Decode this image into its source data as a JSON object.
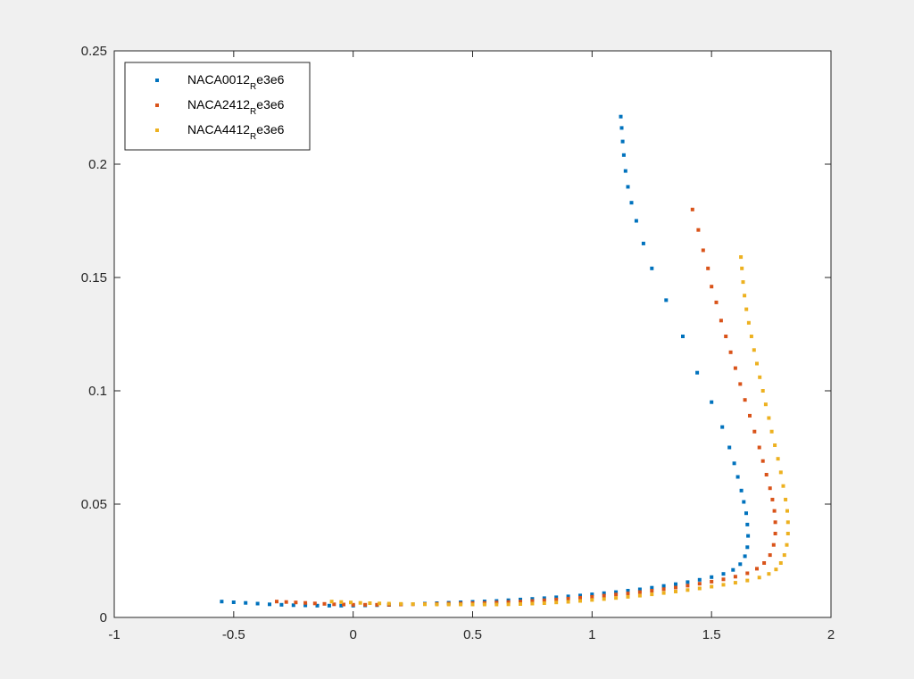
{
  "chart_data": {
    "type": "scatter",
    "title": "",
    "xlabel": "",
    "ylabel": "",
    "xlim": [
      -1,
      2
    ],
    "ylim": [
      0,
      0.25
    ],
    "x_ticks": [
      -1,
      -0.5,
      0,
      0.5,
      1,
      1.5,
      2
    ],
    "x_tick_labels": [
      "-1",
      "-0.5",
      "0",
      "0.5",
      "1",
      "1.5",
      "2"
    ],
    "y_ticks": [
      0,
      0.05,
      0.1,
      0.15,
      0.2,
      0.25
    ],
    "y_tick_labels": [
      "0",
      "0.05",
      "0.1",
      "0.15",
      "0.2",
      "0.25"
    ],
    "grid": false,
    "legend_position": "top-left",
    "series": [
      {
        "name": "NACA0012_Re3e6",
        "label_main": "NACA0012",
        "label_sub": "R",
        "label_tail": "e3e6",
        "color": "#0072BD",
        "points": [
          [
            -0.55,
            0.007
          ],
          [
            -0.5,
            0.0067
          ],
          [
            -0.45,
            0.0064
          ],
          [
            -0.4,
            0.0061
          ],
          [
            -0.35,
            0.0058
          ],
          [
            -0.3,
            0.0056
          ],
          [
            -0.25,
            0.0054
          ],
          [
            -0.2,
            0.0053
          ],
          [
            -0.15,
            0.0052
          ],
          [
            -0.1,
            0.0052
          ],
          [
            -0.05,
            0.0052
          ],
          [
            0.0,
            0.0052
          ],
          [
            0.05,
            0.0053
          ],
          [
            0.1,
            0.0054
          ],
          [
            0.15,
            0.0055
          ],
          [
            0.2,
            0.0057
          ],
          [
            0.25,
            0.0059
          ],
          [
            0.3,
            0.0061
          ],
          [
            0.35,
            0.0063
          ],
          [
            0.4,
            0.0065
          ],
          [
            0.45,
            0.0067
          ],
          [
            0.5,
            0.0069
          ],
          [
            0.55,
            0.0071
          ],
          [
            0.6,
            0.0073
          ],
          [
            0.65,
            0.0076
          ],
          [
            0.7,
            0.0079
          ],
          [
            0.75,
            0.0082
          ],
          [
            0.8,
            0.0085
          ],
          [
            0.85,
            0.0089
          ],
          [
            0.9,
            0.0093
          ],
          [
            0.95,
            0.0097
          ],
          [
            1.0,
            0.0102
          ],
          [
            1.05,
            0.0107
          ],
          [
            1.1,
            0.0112
          ],
          [
            1.15,
            0.0118
          ],
          [
            1.2,
            0.0124
          ],
          [
            1.25,
            0.0131
          ],
          [
            1.3,
            0.0139
          ],
          [
            1.35,
            0.0147
          ],
          [
            1.4,
            0.0156
          ],
          [
            1.45,
            0.0166
          ],
          [
            1.5,
            0.0178
          ],
          [
            1.55,
            0.0192
          ],
          [
            1.59,
            0.021
          ],
          [
            1.62,
            0.0235
          ],
          [
            1.64,
            0.027
          ],
          [
            1.65,
            0.031
          ],
          [
            1.653,
            0.036
          ],
          [
            1.65,
            0.041
          ],
          [
            1.645,
            0.046
          ],
          [
            1.635,
            0.051
          ],
          [
            1.625,
            0.056
          ],
          [
            1.61,
            0.062
          ],
          [
            1.595,
            0.068
          ],
          [
            1.575,
            0.075
          ],
          [
            1.545,
            0.084
          ],
          [
            1.5,
            0.095
          ],
          [
            1.44,
            0.108
          ],
          [
            1.38,
            0.124
          ],
          [
            1.31,
            0.14
          ],
          [
            1.25,
            0.154
          ],
          [
            1.215,
            0.165
          ],
          [
            1.185,
            0.175
          ],
          [
            1.165,
            0.183
          ],
          [
            1.15,
            0.19
          ],
          [
            1.14,
            0.197
          ],
          [
            1.133,
            0.204
          ],
          [
            1.128,
            0.21
          ],
          [
            1.124,
            0.216
          ],
          [
            1.12,
            0.221
          ]
        ]
      },
      {
        "name": "NACA2412_Re3e6",
        "label_main": "NACA2412",
        "label_sub": "R",
        "label_tail": "e3e6",
        "color": "#D95319",
        "points": [
          [
            -0.32,
            0.007
          ],
          [
            -0.28,
            0.0068
          ],
          [
            -0.24,
            0.0066
          ],
          [
            -0.2,
            0.0064
          ],
          [
            -0.16,
            0.0062
          ],
          [
            -0.12,
            0.006
          ],
          [
            -0.08,
            0.0058
          ],
          [
            -0.04,
            0.0057
          ],
          [
            0.0,
            0.0056
          ],
          [
            0.05,
            0.0056
          ],
          [
            0.1,
            0.0056
          ],
          [
            0.15,
            0.0056
          ],
          [
            0.2,
            0.0057
          ],
          [
            0.25,
            0.0058
          ],
          [
            0.3,
            0.0059
          ],
          [
            0.35,
            0.006
          ],
          [
            0.4,
            0.0061
          ],
          [
            0.45,
            0.0062
          ],
          [
            0.5,
            0.0063
          ],
          [
            0.55,
            0.0064
          ],
          [
            0.6,
            0.0066
          ],
          [
            0.65,
            0.0068
          ],
          [
            0.7,
            0.007
          ],
          [
            0.75,
            0.0073
          ],
          [
            0.8,
            0.0076
          ],
          [
            0.85,
            0.0079
          ],
          [
            0.9,
            0.0083
          ],
          [
            0.95,
            0.0087
          ],
          [
            1.0,
            0.0091
          ],
          [
            1.05,
            0.0096
          ],
          [
            1.1,
            0.0101
          ],
          [
            1.15,
            0.0106
          ],
          [
            1.2,
            0.0112
          ],
          [
            1.25,
            0.0118
          ],
          [
            1.3,
            0.0125
          ],
          [
            1.35,
            0.0132
          ],
          [
            1.4,
            0.014
          ],
          [
            1.45,
            0.0149
          ],
          [
            1.5,
            0.0158
          ],
          [
            1.55,
            0.0168
          ],
          [
            1.6,
            0.018
          ],
          [
            1.65,
            0.0195
          ],
          [
            1.69,
            0.0215
          ],
          [
            1.72,
            0.024
          ],
          [
            1.745,
            0.0275
          ],
          [
            1.76,
            0.032
          ],
          [
            1.767,
            0.037
          ],
          [
            1.767,
            0.042
          ],
          [
            1.763,
            0.047
          ],
          [
            1.755,
            0.052
          ],
          [
            1.745,
            0.057
          ],
          [
            1.73,
            0.063
          ],
          [
            1.715,
            0.069
          ],
          [
            1.7,
            0.075
          ],
          [
            1.68,
            0.082
          ],
          [
            1.66,
            0.089
          ],
          [
            1.64,
            0.096
          ],
          [
            1.62,
            0.103
          ],
          [
            1.6,
            0.11
          ],
          [
            1.58,
            0.117
          ],
          [
            1.56,
            0.124
          ],
          [
            1.54,
            0.131
          ],
          [
            1.52,
            0.139
          ],
          [
            1.5,
            0.146
          ],
          [
            1.485,
            0.154
          ],
          [
            1.465,
            0.162
          ],
          [
            1.445,
            0.171
          ],
          [
            1.42,
            0.18
          ]
        ]
      },
      {
        "name": "NACA4412_Re3e6",
        "label_main": "NACA4412",
        "label_sub": "R",
        "label_tail": "e3e6",
        "color": "#EDB120",
        "points": [
          [
            -0.09,
            0.007
          ],
          [
            -0.05,
            0.0068
          ],
          [
            -0.01,
            0.0066
          ],
          [
            0.03,
            0.0064
          ],
          [
            0.07,
            0.0063
          ],
          [
            0.11,
            0.0062
          ],
          [
            0.15,
            0.0061
          ],
          [
            0.2,
            0.006
          ],
          [
            0.25,
            0.0059
          ],
          [
            0.3,
            0.0058
          ],
          [
            0.35,
            0.0057
          ],
          [
            0.4,
            0.0057
          ],
          [
            0.45,
            0.0057
          ],
          [
            0.5,
            0.0057
          ],
          [
            0.55,
            0.0057
          ],
          [
            0.6,
            0.0057
          ],
          [
            0.65,
            0.0058
          ],
          [
            0.7,
            0.0059
          ],
          [
            0.75,
            0.0061
          ],
          [
            0.8,
            0.0063
          ],
          [
            0.85,
            0.0066
          ],
          [
            0.9,
            0.0069
          ],
          [
            0.95,
            0.0073
          ],
          [
            1.0,
            0.0077
          ],
          [
            1.05,
            0.0081
          ],
          [
            1.1,
            0.0086
          ],
          [
            1.15,
            0.0091
          ],
          [
            1.2,
            0.0096
          ],
          [
            1.25,
            0.0102
          ],
          [
            1.3,
            0.0108
          ],
          [
            1.35,
            0.0114
          ],
          [
            1.4,
            0.0121
          ],
          [
            1.45,
            0.0128
          ],
          [
            1.5,
            0.0136
          ],
          [
            1.55,
            0.0144
          ],
          [
            1.6,
            0.0153
          ],
          [
            1.65,
            0.0163
          ],
          [
            1.7,
            0.0176
          ],
          [
            1.74,
            0.0192
          ],
          [
            1.77,
            0.0212
          ],
          [
            1.79,
            0.024
          ],
          [
            1.805,
            0.0275
          ],
          [
            1.815,
            0.032
          ],
          [
            1.82,
            0.037
          ],
          [
            1.82,
            0.042
          ],
          [
            1.817,
            0.047
          ],
          [
            1.81,
            0.052
          ],
          [
            1.8,
            0.058
          ],
          [
            1.79,
            0.064
          ],
          [
            1.778,
            0.07
          ],
          [
            1.765,
            0.076
          ],
          [
            1.752,
            0.082
          ],
          [
            1.74,
            0.088
          ],
          [
            1.727,
            0.094
          ],
          [
            1.715,
            0.1
          ],
          [
            1.702,
            0.106
          ],
          [
            1.69,
            0.112
          ],
          [
            1.678,
            0.118
          ],
          [
            1.667,
            0.124
          ],
          [
            1.656,
            0.13
          ],
          [
            1.646,
            0.136
          ],
          [
            1.638,
            0.142
          ],
          [
            1.632,
            0.148
          ],
          [
            1.627,
            0.154
          ],
          [
            1.623,
            0.159
          ]
        ]
      }
    ]
  }
}
